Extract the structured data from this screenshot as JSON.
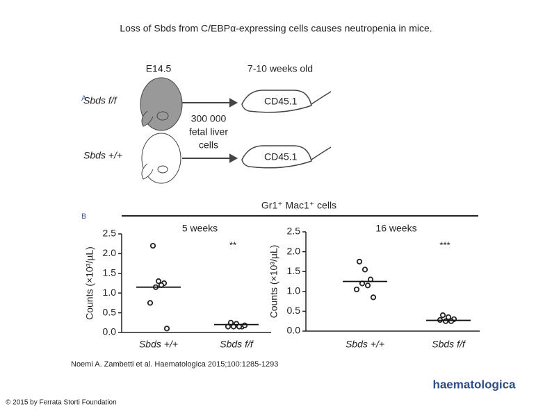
{
  "title": "Loss of Sbds from C/EBPα-expressing cells causes neutropenia in mice.",
  "panel_a": {
    "label": "A",
    "left_time": "E14.5",
    "right_time": "7-10 weeks old",
    "genotypes": [
      "Sbds f/f",
      "Sbds +/+"
    ],
    "transfer": [
      "300 000",
      "fetal liver",
      "cells"
    ],
    "recipient": [
      "CD45.1",
      "CD45.1"
    ]
  },
  "panel_b": {
    "label": "B",
    "header": "Gr1⁺ Mac1⁺ cells"
  },
  "chart_data": [
    {
      "type": "dot",
      "title": "5 weeks",
      "ylabel": "Counts (×10³/µL)",
      "annotation": "**",
      "categories": [
        "Sbds +/+",
        "Sbds f/f"
      ],
      "points": [
        [
          2.2,
          1.3,
          1.25,
          1.15,
          1.2,
          0.75,
          0.1
        ],
        [
          0.25,
          0.22,
          0.15,
          0.15,
          0.15,
          0.15,
          0.18
        ]
      ],
      "means": [
        1.15,
        0.2
      ],
      "ylim": [
        0,
        2.5
      ],
      "yticks": [
        {
          "value": 0,
          "label": "0.0"
        },
        0.5,
        {
          "value": 1,
          "label": "1.0"
        },
        1.5,
        {
          "value": 2,
          "label": "2.0"
        },
        2.5
      ]
    },
    {
      "type": "dot",
      "title": "16 weeks",
      "ylabel": "Counts (×10³/µL)",
      "annotation": "***",
      "categories": [
        "Sbds +/+",
        "Sbds f/f"
      ],
      "points": [
        [
          1.75,
          1.55,
          1.3,
          1.2,
          1.15,
          1.05,
          0.85
        ],
        [
          0.4,
          0.35,
          0.3,
          0.25,
          0.25,
          0.28
        ]
      ],
      "means": [
        1.25,
        0.27
      ],
      "ylim": [
        0,
        2.5
      ],
      "yticks": [
        {
          "value": 0,
          "label": "0.0"
        },
        0.5,
        {
          "value": 1,
          "label": "1.0"
        },
        1.5,
        {
          "value": 2,
          "label": "2.0"
        },
        2.5
      ]
    }
  ],
  "citation": "Noemi A. Zambetti et al. Haematologica 2015;100:1285-1293",
  "copyright": "© 2015 by Ferrata Storti Foundation",
  "logo": "haematologica"
}
